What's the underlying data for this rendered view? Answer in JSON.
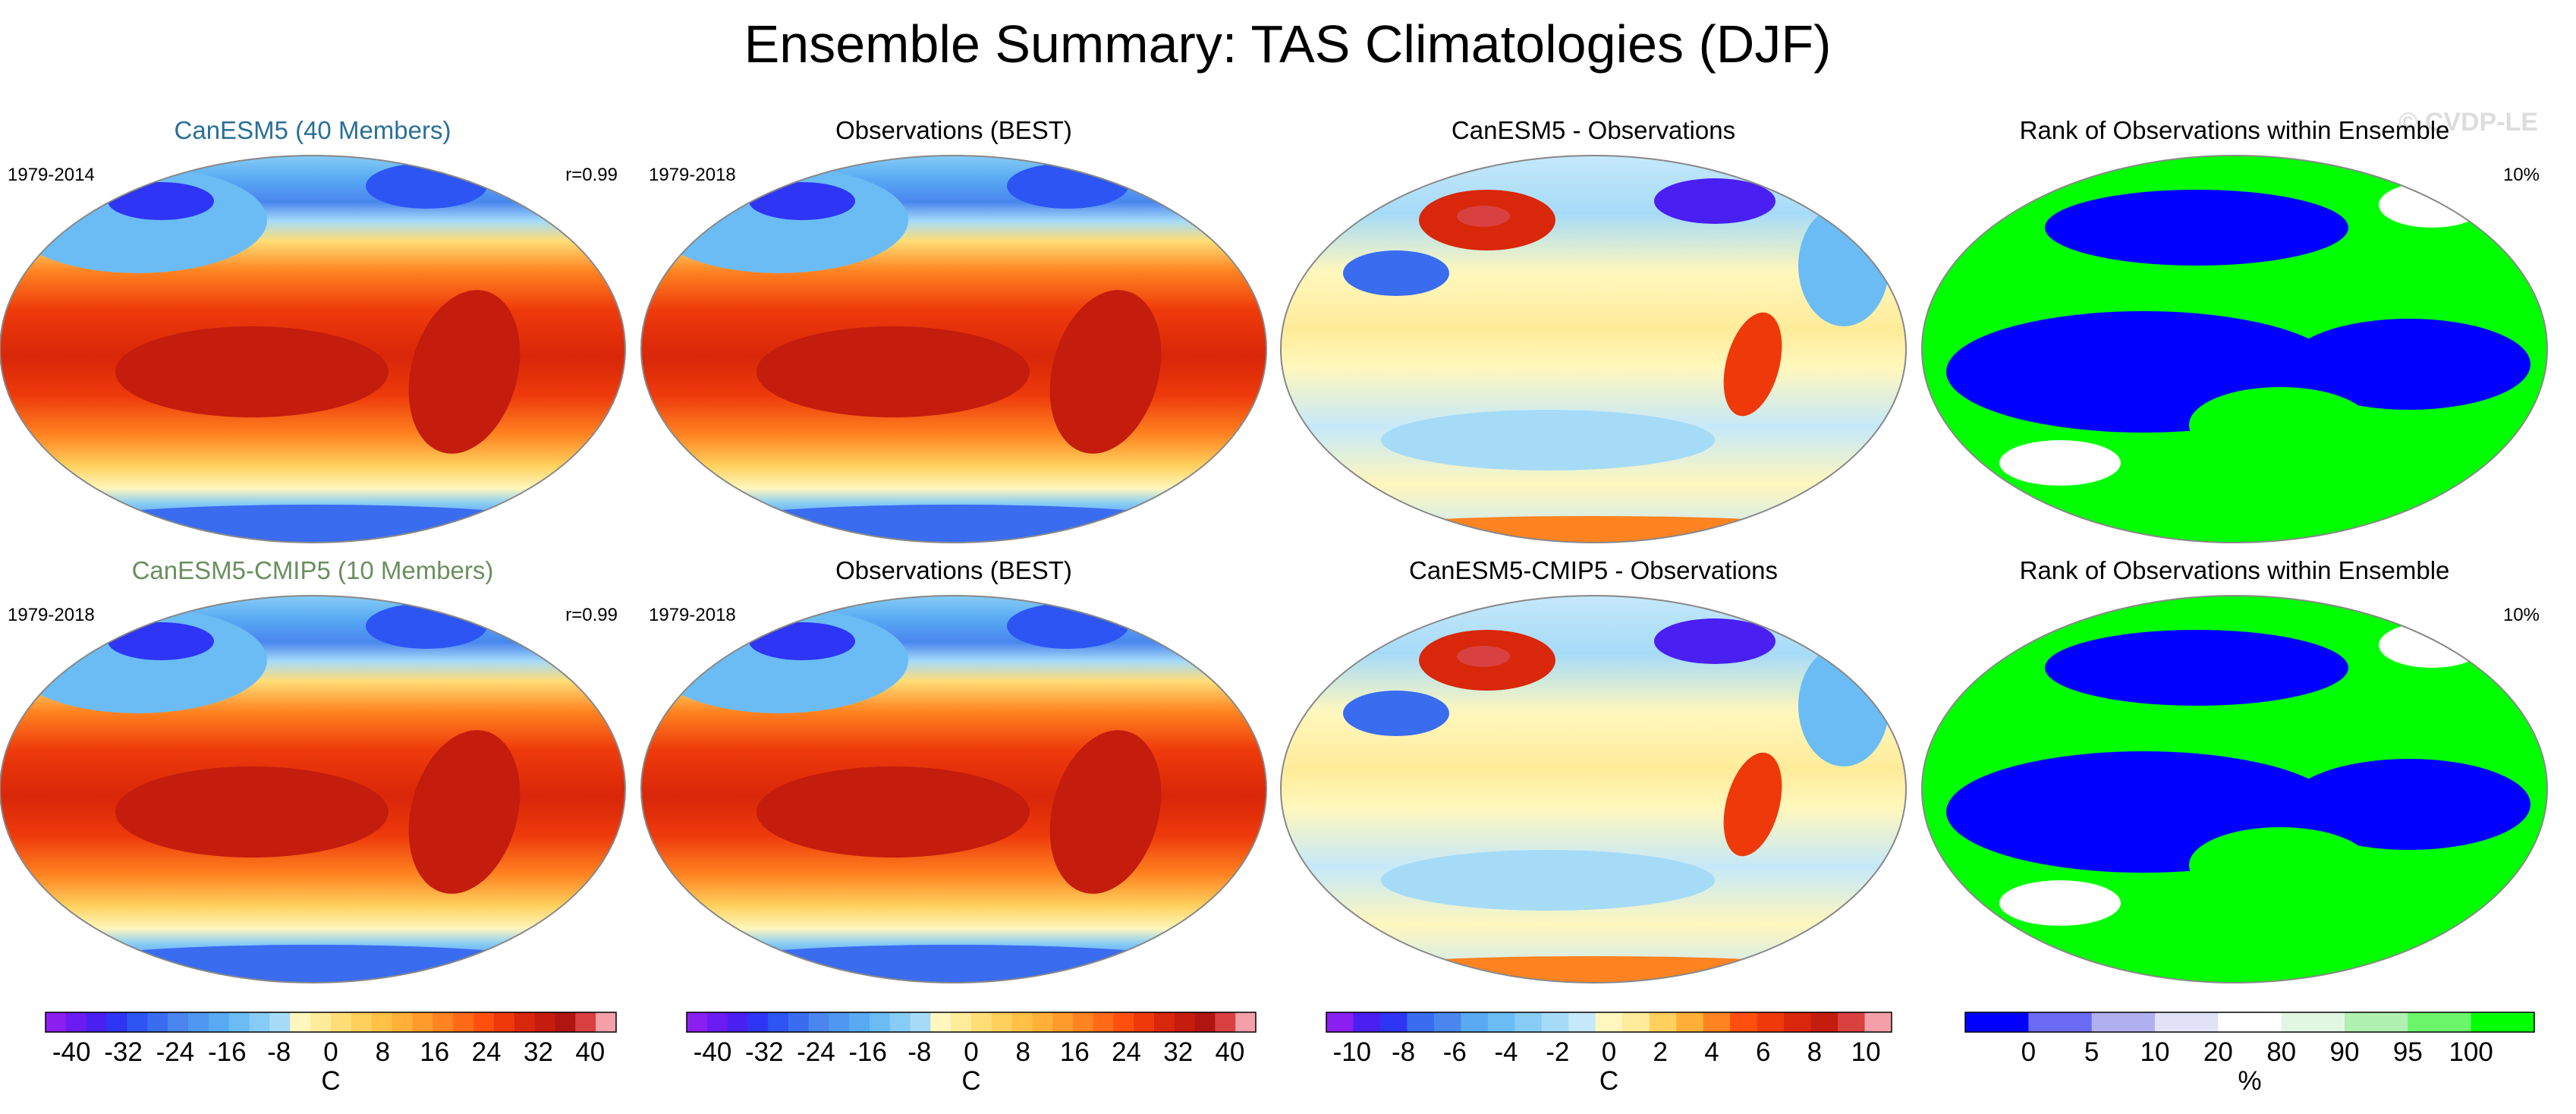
{
  "title": "Ensemble Summary: TAS Climatologies (DJF)",
  "watermark": "© CVDP-LE",
  "colors": {
    "label_row1": "#2a6f97",
    "label_row2": "#6a8f5e",
    "map_edge": "#888888"
  },
  "rows": [
    {
      "panels": [
        {
          "type": "temp",
          "title": "CanESM5 (40 Members)",
          "title_color": "#2a6f97",
          "left": "1979-2014",
          "right": "r=0.99"
        },
        {
          "type": "temp",
          "title": "Observations (BEST)",
          "title_color": "#000000",
          "left": "1979-2018",
          "right": ""
        },
        {
          "type": "diff",
          "title": "CanESM5 - Observations",
          "title_color": "#000000",
          "left": "",
          "right": ""
        },
        {
          "type": "rank",
          "title": "Rank of Observations within Ensemble",
          "title_color": "#000000",
          "left": "",
          "right": "10%"
        }
      ]
    },
    {
      "panels": [
        {
          "type": "temp",
          "title": "CanESM5-CMIP5 (10 Members)",
          "title_color": "#6a8f5e",
          "left": "1979-2018",
          "right": "r=0.99"
        },
        {
          "type": "temp",
          "title": "Observations (BEST)",
          "title_color": "#000000",
          "left": "1979-2018",
          "right": ""
        },
        {
          "type": "diff",
          "title": "CanESM5-CMIP5 - Observations",
          "title_color": "#000000",
          "left": "",
          "right": ""
        },
        {
          "type": "rank",
          "title": "Rank of Observations within Ensemble",
          "title_color": "#000000",
          "left": "",
          "right": "10%"
        }
      ]
    }
  ],
  "chart_data": [
    {
      "type": "heatmap",
      "name": "temperature-colorbar",
      "unit_label": "C",
      "range": [
        -44,
        44
      ],
      "interval": 4,
      "ticks": [
        "-40",
        "-32",
        "-24",
        "-16",
        "-8",
        "0",
        "8",
        "16",
        "24",
        "32",
        "40"
      ],
      "colors": [
        "#8b1ff0",
        "#6a1cf2",
        "#4a1ff2",
        "#2e35f5",
        "#2d55f3",
        "#3a6cf0",
        "#4a86ee",
        "#4f98f1",
        "#58aaf3",
        "#6bbcf4",
        "#86ccf6",
        "#a6dbf8",
        "#fff7bd",
        "#ffec9a",
        "#ffde77",
        "#ffd05c",
        "#ffc146",
        "#ffb038",
        "#ff9b2a",
        "#ff8320",
        "#ff6a16",
        "#ff4f0e",
        "#ee3a0b",
        "#d8270a",
        "#c41c0d",
        "#b01512",
        "#d94040",
        "#f5a0a8"
      ]
    },
    {
      "type": "heatmap",
      "name": "difference-colorbar",
      "unit_label": "C",
      "range": [
        -11,
        11
      ],
      "interval": 1,
      "ticks": [
        "-10",
        "-8",
        "-6",
        "-4",
        "-2",
        "0",
        "2",
        "4",
        "6",
        "8",
        "10"
      ],
      "colors": [
        "#8b1ff0",
        "#4a1ff2",
        "#2e35f5",
        "#3a6cf0",
        "#4a86ee",
        "#58aaf3",
        "#6bbcf4",
        "#86ccf6",
        "#a6dbf8",
        "#c5e8fa",
        "#fff7bd",
        "#ffec9a",
        "#ffd05c",
        "#ffb038",
        "#ff8320",
        "#ff4f0e",
        "#ee3a0b",
        "#d8270a",
        "#c41c0d",
        "#d94040",
        "#f5a0a8"
      ]
    },
    {
      "type": "heatmap",
      "name": "rank-colorbar",
      "unit_label": "%",
      "bin_edges": [
        -5,
        0,
        5,
        10,
        20,
        80,
        90,
        95,
        100,
        105
      ],
      "ticks": [
        "0",
        "5",
        "10",
        "20",
        "80",
        "90",
        "95",
        "100"
      ],
      "colors": [
        "#0000ff",
        "#6a6af5",
        "#b0b0f0",
        "#e2e2f7",
        "#ffffff",
        "#e2f7e2",
        "#b0f0b0",
        "#6af56a",
        "#00ff00"
      ]
    }
  ]
}
